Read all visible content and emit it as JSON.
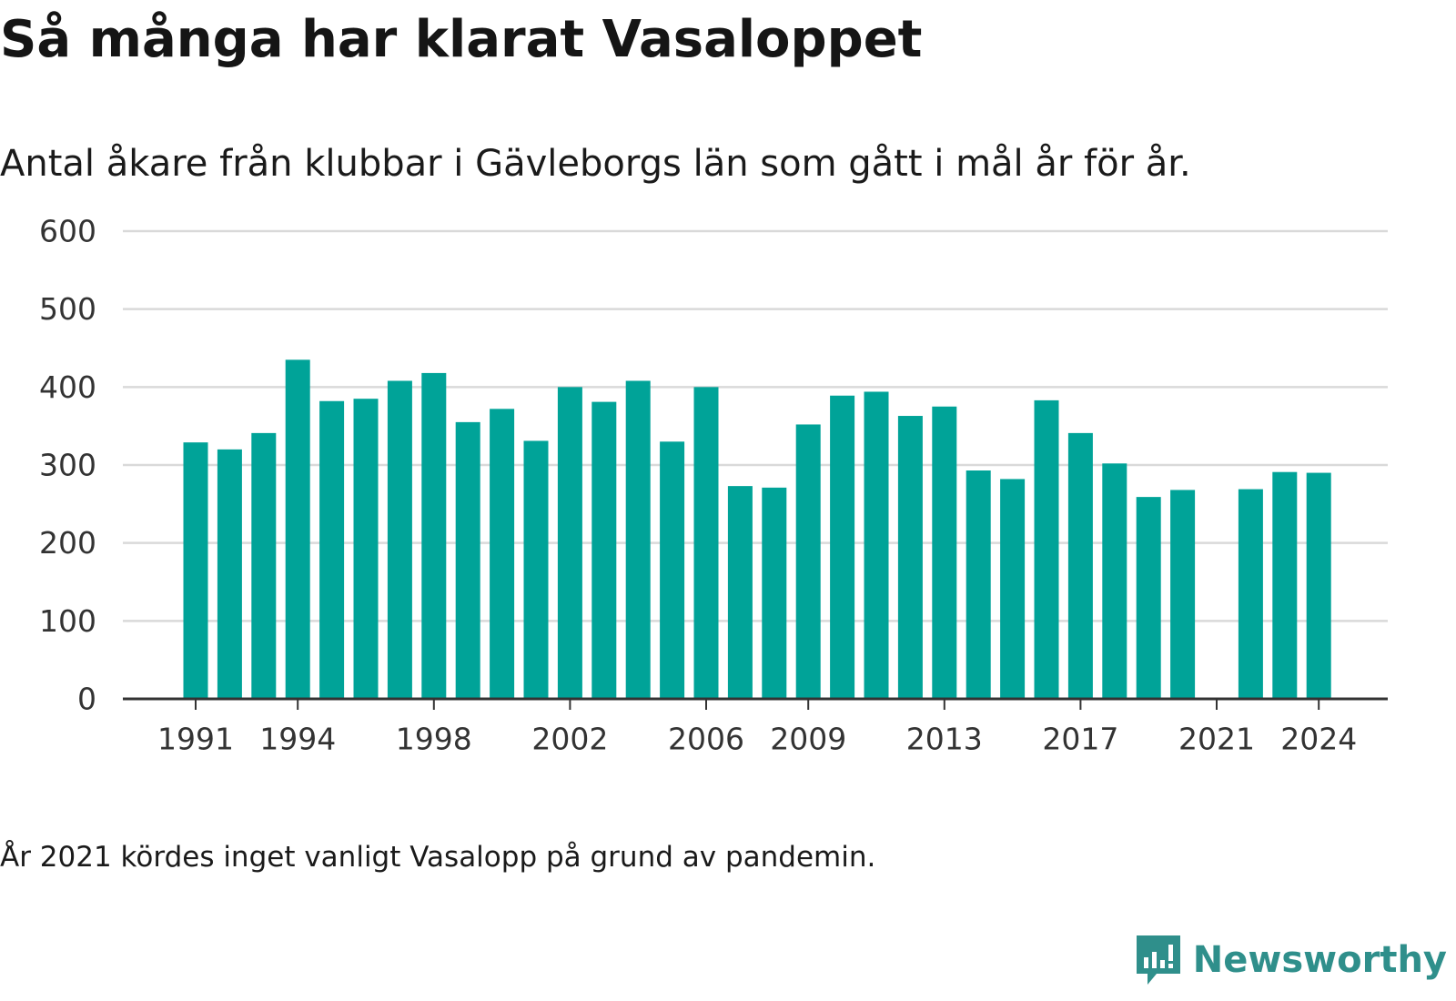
{
  "header": {
    "title": "Så många har klarat Vasaloppet",
    "subtitle": "Antal åkare från klubbar i Gävleborgs län som gått i mål år för år."
  },
  "footnote": "År 2021 kördes inget vanligt Vasalopp på grund av pandemin.",
  "brand": {
    "name": "Newsworthy",
    "color": "#2f8f8b"
  },
  "colors": {
    "bar": "#00a398",
    "grid": "#d9d9d9",
    "axis": "#333333"
  },
  "chart_data": {
    "type": "bar",
    "title": "Så många har klarat Vasaloppet",
    "subtitle": "Antal åkare från klubbar i Gävleborgs län som gått i mål år för år.",
    "xlabel": "",
    "ylabel": "",
    "ylim": [
      0,
      600
    ],
    "yticks": [
      0,
      100,
      200,
      300,
      400,
      500,
      600
    ],
    "xticks": [
      1991,
      1994,
      1998,
      2002,
      2006,
      2009,
      2013,
      2017,
      2021,
      2024
    ],
    "grid": true,
    "categories": [
      1991,
      1992,
      1993,
      1994,
      1995,
      1996,
      1997,
      1998,
      1999,
      2000,
      2001,
      2002,
      2003,
      2004,
      2005,
      2006,
      2007,
      2008,
      2009,
      2010,
      2011,
      2012,
      2013,
      2014,
      2015,
      2016,
      2017,
      2018,
      2019,
      2020,
      2021,
      2022,
      2023,
      2024
    ],
    "values": [
      329,
      320,
      341,
      435,
      382,
      385,
      408,
      418,
      355,
      372,
      331,
      400,
      381,
      408,
      330,
      400,
      273,
      271,
      352,
      389,
      394,
      363,
      375,
      293,
      282,
      383,
      341,
      302,
      259,
      268,
      null,
      269,
      291,
      290
    ]
  }
}
